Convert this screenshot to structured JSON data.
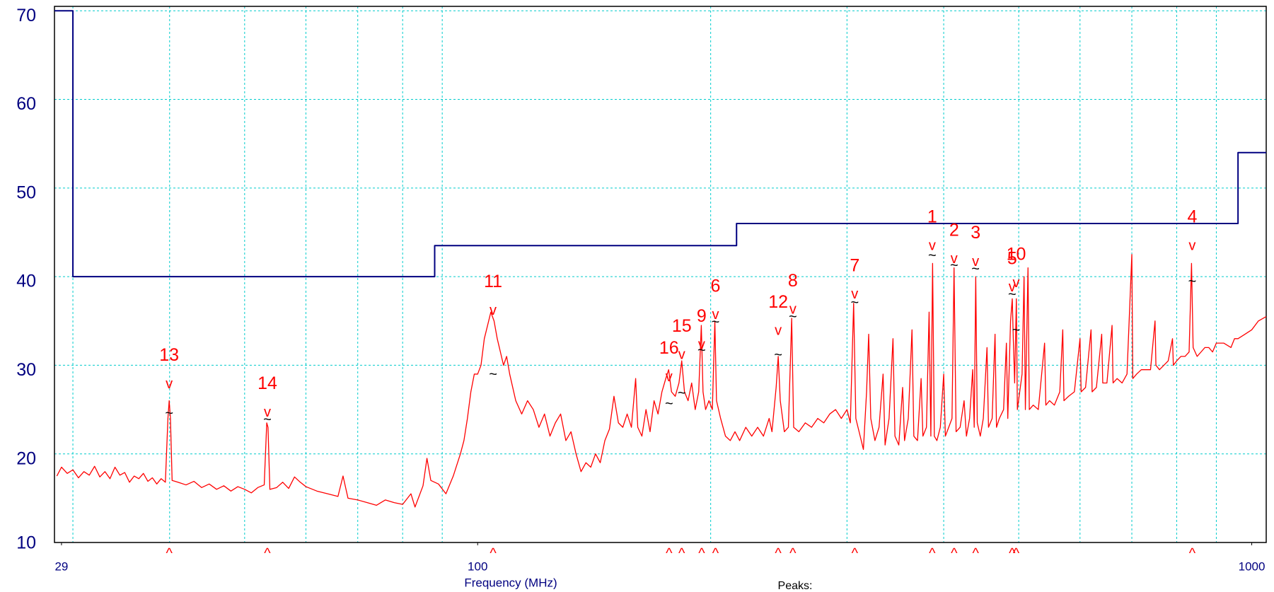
{
  "chart_data": {
    "type": "line",
    "x_label": "Frequency (MHz)",
    "footer": "Peaks:",
    "xlog": true,
    "xlim": [
      28.4,
      1044
    ],
    "xticks": [
      29,
      100,
      1000
    ],
    "xgrid": [
      30,
      40,
      50,
      60,
      70,
      80,
      90,
      200,
      300,
      400,
      500,
      600,
      700,
      800,
      900
    ],
    "ylim": [
      10,
      70.5
    ],
    "yticks": [
      10,
      20,
      30,
      40,
      50,
      60,
      70
    ],
    "grid": true,
    "series": [
      {
        "color": "#000080",
        "step": true,
        "x": [
          28.4,
          30,
          30,
          88,
          88,
          216,
          216,
          960,
          960,
          1044
        ],
        "values": [
          70,
          70,
          40,
          40,
          43.5,
          43.5,
          46,
          46,
          54,
          54
        ]
      },
      {
        "color": "#ff0000",
        "x": [
          28.6,
          29,
          29.5,
          30,
          30.5,
          31,
          31.5,
          32,
          32.5,
          33,
          33.5,
          34,
          34.5,
          35,
          35.5,
          36,
          36.5,
          37,
          37.5,
          38,
          38.5,
          39,
          39.5,
          39.8,
          39.95,
          40.1,
          40.3,
          41,
          42,
          43,
          44,
          45,
          46,
          47,
          48,
          49,
          50,
          51,
          52,
          53,
          53.4,
          53.6,
          53.9,
          55,
          56,
          57,
          58,
          59,
          60,
          62,
          64,
          66,
          67,
          68,
          70,
          72,
          74,
          76,
          78,
          80,
          82,
          83,
          85,
          86,
          87,
          89,
          91,
          93,
          95,
          96,
          97,
          98,
          99,
          100,
          101,
          102,
          103,
          104,
          105,
          106,
          107,
          108,
          109,
          110,
          112,
          114,
          116,
          118,
          120,
          122,
          124,
          126,
          128,
          130,
          132,
          134,
          136,
          138,
          140,
          142,
          144,
          146,
          148,
          150,
          152,
          154,
          156,
          158,
          160,
          161,
          163,
          165,
          167,
          169,
          171,
          173,
          175,
          176.5,
          178,
          180,
          182,
          183.5,
          185,
          187,
          189,
          191,
          193,
          194.5,
          195.5,
          197,
          199,
          201,
          202.5,
          203.5,
          206,
          209,
          212,
          215,
          218,
          222,
          226,
          230,
          234,
          238,
          240,
          243,
          244.5,
          246,
          249,
          252,
          254.5,
          256,
          260,
          265,
          270,
          275,
          280,
          285,
          290,
          295,
          300,
          303,
          306,
          308,
          312,
          315,
          318,
          320,
          322,
          326,
          330,
          334,
          336,
          340,
          344,
          346,
          350,
          354,
          356,
          360,
          364,
          366,
          370,
          374,
          376,
          380,
          383,
          385,
          387,
          389,
          392,
          396,
          400,
          402,
          406,
          410,
          412.5,
          415,
          420,
          425,
          428,
          432,
          436,
          438,
          440,
          442,
          446,
          450,
          455,
          457,
          462,
          466,
          468,
          472,
          478,
          482,
          484,
          488,
          490.5,
          492,
          494,
          496.5,
          498,
          505,
          508,
          510,
          514,
          516,
          522,
          530,
          540,
          542,
          548,
          556,
          565,
          570,
          572,
          580,
          590,
          600,
          602,
          610,
          620,
          622,
          630,
          640,
          642,
          650,
          660,
          662,
          670,
          680,
          690,
          700,
          702,
          710,
          720,
          740,
          750,
          752,
          760,
          770,
          780,
          790,
          792,
          800,
          810,
          820,
          830,
          836,
          840,
          850,
          860,
          870,
          880,
          890,
          900,
          920,
          940,
          950,
          960,
          980,
          1000,
          1020,
          1044
        ],
        "values": [
          17.5,
          18.5,
          17.8,
          18.2,
          17.3,
          18,
          17.6,
          18.6,
          17.4,
          18,
          17.2,
          18.5,
          17.6,
          17.9,
          16.8,
          17.5,
          17.2,
          17.8,
          16.9,
          17.3,
          16.6,
          17.2,
          16.8,
          24,
          26,
          24,
          17,
          16.8,
          16.5,
          16.9,
          16.2,
          16.6,
          16,
          16.4,
          15.8,
          16.3,
          16,
          15.6,
          16.2,
          16.5,
          23.5,
          23,
          16,
          16.2,
          16.8,
          16.1,
          17.4,
          16.8,
          16.3,
          15.8,
          15.5,
          15.2,
          17.5,
          15,
          14.8,
          14.5,
          14.2,
          14.8,
          14.5,
          14.3,
          15.5,
          14,
          16.4,
          19.5,
          17,
          16.6,
          15.5,
          17.5,
          20,
          21.5,
          24,
          27,
          29,
          29,
          30,
          33,
          34.5,
          36,
          35,
          33,
          31.5,
          30,
          31,
          29,
          26,
          24.5,
          26,
          25,
          23,
          24.5,
          22,
          23.5,
          24.5,
          21.5,
          22.5,
          20,
          18,
          19,
          18.5,
          20,
          19,
          21.5,
          22.8,
          26.5,
          23.5,
          23,
          24.5,
          23,
          28.5,
          23,
          22,
          25,
          22.5,
          26,
          24.5,
          27,
          28.5,
          29.5,
          27,
          26.5,
          28,
          30.5,
          27,
          26,
          28,
          25,
          27,
          34.5,
          27,
          25,
          26,
          25,
          35,
          26,
          24,
          22,
          21.5,
          22.5,
          21.5,
          23,
          22,
          23,
          22,
          24,
          22.5,
          27.5,
          31,
          26,
          22.5,
          23,
          35.3,
          23,
          22.5,
          23.5,
          23,
          24,
          23.5,
          24.5,
          25,
          24,
          25,
          23.5,
          37,
          24,
          22,
          20.5,
          27,
          33.5,
          24,
          21.5,
          23,
          29,
          21,
          24,
          33,
          22,
          21,
          27.5,
          21.5,
          24,
          34,
          22,
          21.5,
          28.5,
          22,
          23,
          36,
          22,
          41.5,
          22,
          21.5,
          23,
          29,
          22,
          23,
          24,
          41,
          22.5,
          23,
          26,
          22,
          24,
          29.5,
          23,
          40,
          23.5,
          22,
          24,
          32,
          23,
          24,
          33.5,
          23,
          24,
          25,
          32.5,
          24,
          35,
          37.5,
          33,
          28,
          37.5,
          25,
          29,
          40,
          25,
          41,
          25,
          25.5,
          25,
          32.5,
          25.5,
          26,
          25.5,
          27,
          34,
          26,
          26.5,
          27,
          33,
          27,
          27.5,
          34,
          27,
          27.5,
          33.5,
          28,
          28,
          34.5,
          28,
          28.5,
          28,
          29,
          42.5,
          28.5,
          29,
          29.5,
          29.5,
          35,
          30,
          29.5,
          30,
          30.5,
          33,
          30,
          30.5,
          31,
          31,
          31.5,
          41.5,
          32,
          31,
          31.5,
          32,
          32,
          31.5,
          32.5,
          32.5,
          32,
          33,
          33,
          33.5,
          34,
          35,
          35.5
        ]
      }
    ],
    "peak_symbol": "v",
    "avg_symbol": "~",
    "axis_symbol": "^",
    "peaks": [
      {
        "label": "1",
        "x": 386.6,
        "peak": 42.8,
        "avg": 42.3
      },
      {
        "label": "2",
        "x": 412.6,
        "peak": 41.3,
        "avg": 41.2
      },
      {
        "label": "3",
        "x": 439.8,
        "peak": 41,
        "avg": 40.8
      },
      {
        "label": "4",
        "x": 837.8,
        "peak": 42.8,
        "avg": 39.4
      },
      {
        "label": "5",
        "x": 490.3,
        "peak": 38.1,
        "avg": 37.9
      },
      {
        "label": "6",
        "x": 202.9,
        "peak": 35,
        "avg": 34.8
      },
      {
        "label": "7",
        "x": 307,
        "peak": 37.3,
        "avg": 37
      },
      {
        "label": "8",
        "x": 255.4,
        "peak": 35.6,
        "avg": 35.4
      },
      {
        "label": "9",
        "x": 194.7,
        "peak": 31.6,
        "avg": 31.6
      },
      {
        "label": "10",
        "x": 496.2,
        "peak": 38.6,
        "avg": 33.9
      },
      {
        "label": "11",
        "x": 104.7,
        "peak": 35.5,
        "avg": 28.9
      },
      {
        "label": "12",
        "x": 244.5,
        "peak": 33.2,
        "avg": 31.1
      },
      {
        "label": "13",
        "x": 39.95,
        "peak": 27.2,
        "avg": 24.5
      },
      {
        "label": "14",
        "x": 53.5,
        "peak": 24,
        "avg": 23.8
      },
      {
        "label": "15",
        "x": 183.5,
        "peak": 30.5,
        "avg": 26.8
      },
      {
        "label": "16",
        "x": 176.7,
        "peak": 28,
        "avg": 25.6
      }
    ]
  }
}
